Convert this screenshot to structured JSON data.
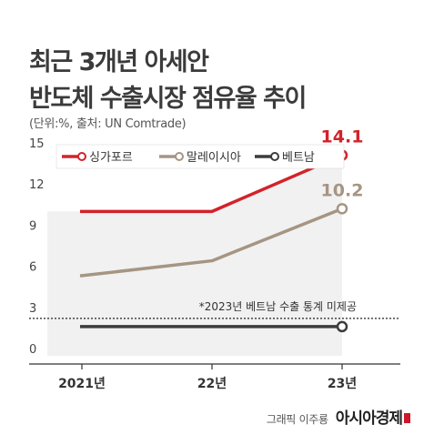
{
  "title_line1": "최근 3개년 아세안",
  "title_line2": "반도체 수출시장 점유율 추이",
  "source": "(단위:%, 출처: UN Comtrade)",
  "note": "*2023년 베트남 수출 통계 미제공",
  "credit": {
    "by": "그래픽 이주룡",
    "brand": "아시아경제"
  },
  "chart_data": {
    "type": "line",
    "title": "최근 3개년 아세안 반도체 수출시장 점유율 추이",
    "x": [
      "2021년",
      "22년",
      "23년"
    ],
    "y_ticks": [
      0,
      3,
      6,
      9,
      12,
      15
    ],
    "ylim": [
      0,
      15
    ],
    "grid": false,
    "legend_position": "top",
    "series": [
      {
        "name": "싱가포르",
        "values": [
          10,
          10,
          14.1
        ],
        "color": "#d3222a",
        "last_label": "14.1"
      },
      {
        "name": "말레이시아",
        "values": [
          5.3,
          6.4,
          10.2
        ],
        "color": "#a69583",
        "last_label": "10.2"
      },
      {
        "name": "베트남",
        "values": [
          1.6,
          1.6,
          1.6
        ],
        "color": "#3c3c3c"
      }
    ]
  }
}
